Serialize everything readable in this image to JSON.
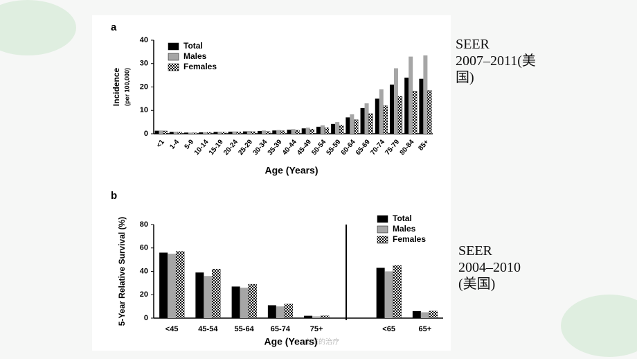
{
  "chart_data": [
    {
      "type": "bar",
      "panel_label": "a",
      "ylabel": "Incidence",
      "ysublabel": "(per 100,000)",
      "xlabel": "Age (Years)",
      "categories": [
        "<1",
        "1-4",
        "5-9",
        "10-14",
        "15-19",
        "20-24",
        "25-29",
        "30-34",
        "35-39",
        "40-44",
        "45-49",
        "50-54",
        "55-59",
        "60-64",
        "65-69",
        "70-74",
        "75-79",
        "80-84",
        "85+"
      ],
      "series": [
        {
          "name": "Total",
          "color": "#000000",
          "values": [
            1.3,
            0.8,
            0.5,
            0.6,
            0.8,
            0.9,
            1.0,
            1.2,
            1.4,
            1.7,
            2.3,
            3.0,
            4.2,
            7.0,
            11,
            15,
            21,
            24,
            23.5
          ]
        },
        {
          "name": "Males",
          "color": "#a6a6a6",
          "values": [
            1.4,
            0.9,
            0.5,
            0.7,
            0.9,
            1.0,
            1.2,
            1.4,
            1.6,
            2.0,
            2.6,
            3.6,
            5.0,
            8.3,
            13,
            19,
            28,
            33,
            33.5
          ]
        },
        {
          "name": "Females",
          "color": "#ffffff",
          "pattern": "checker",
          "values": [
            1.2,
            0.7,
            0.4,
            0.6,
            0.7,
            0.8,
            0.9,
            1.0,
            1.3,
            1.5,
            2.0,
            2.6,
            3.6,
            6.0,
            8.6,
            12,
            16,
            18.3,
            18.5
          ]
        }
      ],
      "ylim": [
        0,
        40
      ],
      "yticks": [
        0,
        10,
        20,
        30,
        40
      ],
      "legend": "upper-left"
    },
    {
      "type": "bar",
      "panel_label": "b",
      "ylabel": "5-Year Relative Survival (%)",
      "xlabel": "Age (Years)",
      "categories": [
        "<45",
        "45-54",
        "55-64",
        "65-74",
        "75+",
        null,
        "<65",
        "65+"
      ],
      "series": [
        {
          "name": "Total",
          "color": "#000000",
          "values": [
            56,
            39,
            27,
            11,
            2,
            null,
            43,
            6
          ]
        },
        {
          "name": "Males",
          "color": "#a6a6a6",
          "values": [
            55,
            36,
            26,
            10,
            1.5,
            null,
            40,
            5
          ]
        },
        {
          "name": "Females",
          "color": "#ffffff",
          "pattern": "checker",
          "values": [
            57,
            42,
            29,
            12,
            2,
            null,
            45,
            6
          ]
        }
      ],
      "ylim": [
        0,
        80
      ],
      "yticks": [
        0,
        20,
        40,
        60,
        80
      ],
      "legend": "upper-right"
    }
  ],
  "notes": [
    [
      "SEER",
      "2007–2011(美",
      "国)"
    ],
    [
      "SEER",
      "2004–2010",
      "(美国)"
    ]
  ],
  "footer": "血病的治疗"
}
